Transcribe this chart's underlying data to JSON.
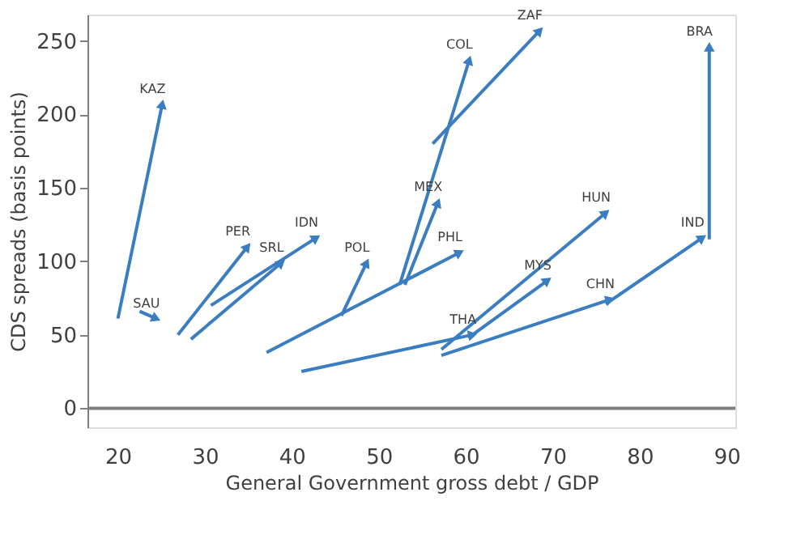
{
  "chart_data": {
    "type": "line",
    "xlabel": "General Government gross debt / GDP",
    "ylabel": "CDS spreads (basis points)",
    "xlim": [
      16.5,
      91
    ],
    "ylim": [
      -13,
      268
    ],
    "xticks": [
      20,
      30,
      40,
      50,
      60,
      70,
      80,
      90
    ],
    "yticks": [
      0,
      50,
      100,
      150,
      200,
      250
    ],
    "grid": false,
    "legend": false,
    "ref_lines": [
      {
        "axis": "y",
        "value": 0,
        "color": "#7f7f7f"
      }
    ],
    "series": [
      {
        "name": "KAZ",
        "color": "#3a7dc0",
        "x": [
          20,
          25.1
        ],
        "values": [
          61,
          207
        ]
      },
      {
        "name": "SAU",
        "color": "#3a7dc0",
        "x": [
          22.5,
          24.4
        ],
        "values": [
          66,
          61
        ]
      },
      {
        "name": "PER",
        "color": "#3a7dc0",
        "x": [
          26.9,
          34.9
        ],
        "values": [
          50,
          110
        ]
      },
      {
        "name": "SRL",
        "color": "#3a7dc0",
        "x": [
          28.4,
          38.8
        ],
        "values": [
          47,
          99
        ]
      },
      {
        "name": "IDN",
        "color": "#3a7dc0",
        "x": [
          30.7,
          42.8
        ],
        "values": [
          70,
          116
        ]
      },
      {
        "name": "POL",
        "color": "#3a7dc0",
        "x": [
          45.7,
          48.6
        ],
        "values": [
          63,
          99
        ]
      },
      {
        "name": "PHL",
        "color": "#3a7dc0",
        "x": [
          37.1,
          59.3
        ],
        "values": [
          38,
          106
        ]
      },
      {
        "name": "COL",
        "color": "#3a7dc0",
        "x": [
          52.4,
          60.4
        ],
        "values": [
          84,
          237
        ]
      },
      {
        "name": "MEX",
        "color": "#3a7dc0",
        "x": [
          53,
          56.8
        ],
        "values": [
          84,
          140
        ]
      },
      {
        "name": "ZAF",
        "color": "#3a7dc0",
        "x": [
          56.2,
          68.5
        ],
        "values": [
          180,
          257
        ]
      },
      {
        "name": "THA",
        "color": "#3a7dc0",
        "x": [
          41.1,
          60.8
        ],
        "values": [
          25,
          50
        ]
      },
      {
        "name": "HUN",
        "color": "#3a7dc0",
        "x": [
          57.2,
          76.1
        ],
        "values": [
          40,
          133
        ]
      },
      {
        "name": "MYS",
        "color": "#3a7dc0",
        "x": [
          60.3,
          69.4
        ],
        "values": [
          48,
          87
        ]
      },
      {
        "name": "CHN",
        "color": "#3a7dc0",
        "x": [
          57.2,
          76.6
        ],
        "values": [
          36,
          74
        ]
      },
      {
        "name": "IND",
        "color": "#3a7dc0",
        "x": [
          76.1,
          87.2
        ],
        "values": [
          71,
          116
        ]
      },
      {
        "name": "BRA",
        "color": "#3a7dc0",
        "x": [
          88,
          88
        ],
        "values": [
          115,
          246
        ]
      }
    ]
  }
}
